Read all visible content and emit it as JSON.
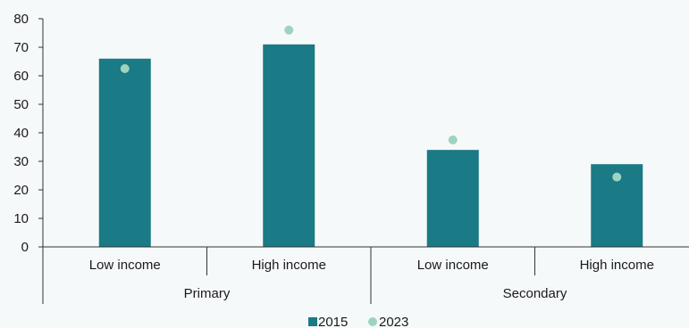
{
  "chart_data": {
    "type": "bar",
    "groups": [
      {
        "name": "Primary",
        "categories": [
          "Low income",
          "High income"
        ]
      },
      {
        "name": "Secondary",
        "categories": [
          "Low income",
          "High income"
        ]
      }
    ],
    "categories": [
      "Low income",
      "High income",
      "Low income",
      "High income"
    ],
    "series": [
      {
        "name": "2015",
        "mark": "bar",
        "values": [
          66,
          71,
          34,
          29
        ]
      },
      {
        "name": "2023",
        "mark": "point",
        "values": [
          62.5,
          76,
          37.5,
          24.5
        ]
      }
    ],
    "yticks": [
      0,
      10,
      20,
      30,
      40,
      50,
      60,
      70,
      80
    ],
    "ylim": [
      0,
      80
    ],
    "title": "",
    "xlabel": "",
    "ylabel": "",
    "grid": false,
    "legend": "bottom-center",
    "colors": {
      "bar": "#1a7a85",
      "point": "#9ed4bf",
      "axis": "#333333",
      "background": "#f6f9fa"
    }
  }
}
